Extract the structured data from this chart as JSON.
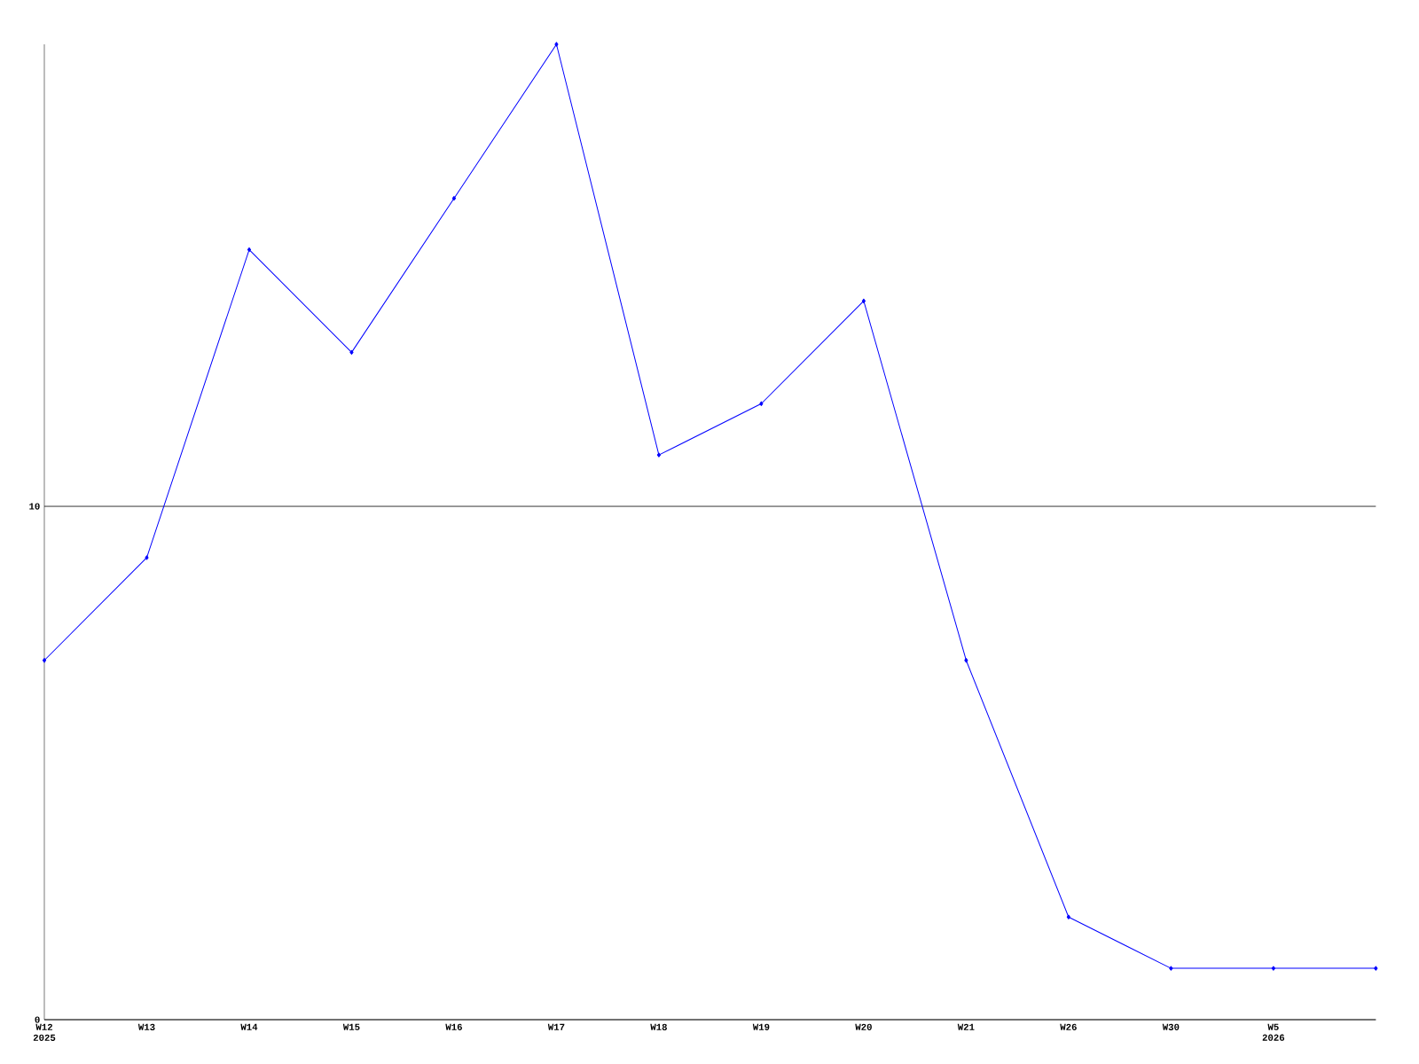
{
  "chart_data": {
    "type": "line",
    "categories": [
      "W12",
      "W13",
      "W14",
      "W15",
      "W16",
      "W17",
      "W18",
      "W19",
      "W20",
      "W21",
      "W26",
      "W30",
      "W5",
      null
    ],
    "series": [
      {
        "color": "#0000ff",
        "values": [
          7,
          9,
          15,
          13,
          16,
          19,
          11,
          12,
          14,
          7,
          2,
          1,
          1,
          1
        ]
      }
    ],
    "ylim": [
      0,
      19
    ],
    "yticks": [
      0,
      10
    ],
    "grid": "y",
    "marker": "diamond",
    "annotations": [
      "2025",
      "2026"
    ]
  }
}
